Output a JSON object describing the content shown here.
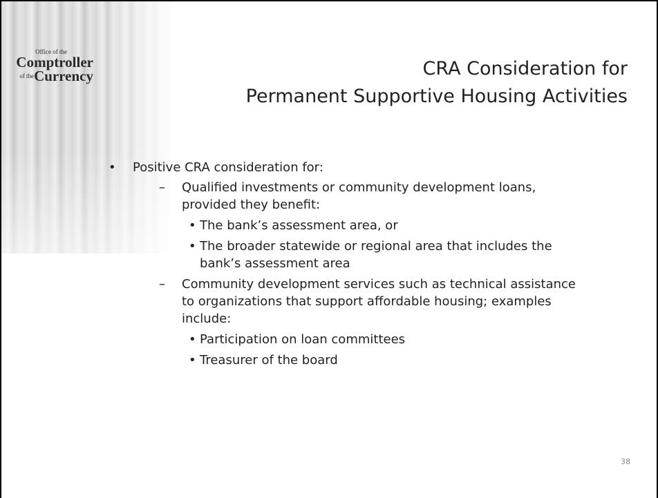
{
  "logo": {
    "line1": "Office of the",
    "line2": "Comptroller",
    "line3_prefix": "of the",
    "line3": "Currency"
  },
  "title": [
    "CRA Consideration for",
    "Permanent Supportive Housing Activities"
  ],
  "bullets": [
    {
      "text": "Positive CRA consideration for:",
      "children": [
        {
          "text": "Qualified investments or community development loans, provided they benefit:",
          "children": [
            {
              "text": "The bank’s assessment area, or"
            },
            {
              "text": "The broader statewide or regional area that includes the bank’s assessment area"
            }
          ]
        },
        {
          "text": "Community development services such as technical assistance to organizations that support affordable housing; examples include:",
          "children": [
            {
              "text": "Participation on loan committees"
            },
            {
              "text": "Treasurer of the board"
            }
          ]
        }
      ]
    }
  ],
  "page_number": "38"
}
